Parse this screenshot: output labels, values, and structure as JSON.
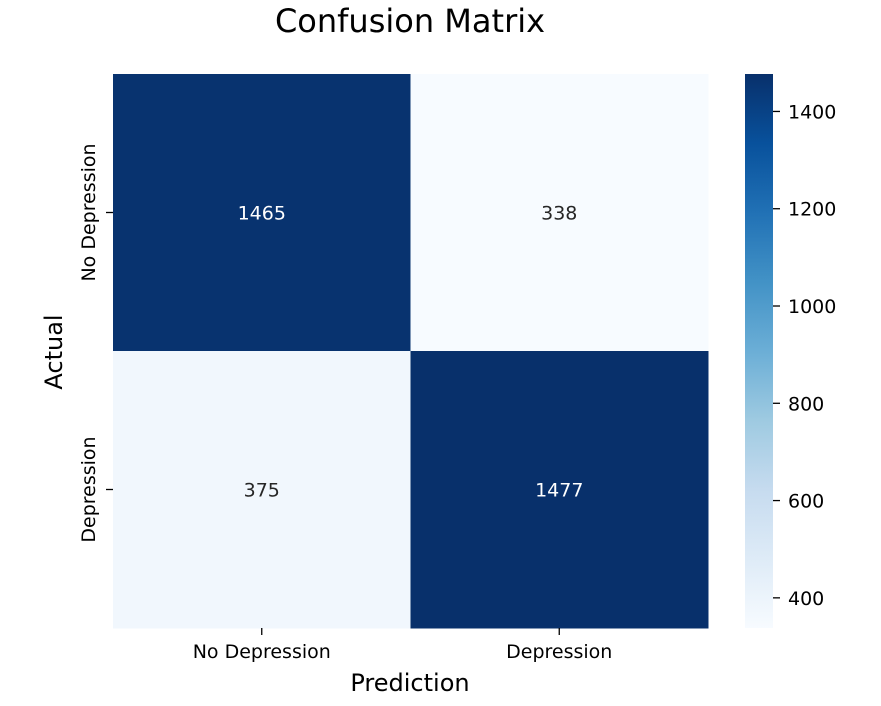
{
  "chart_data": {
    "type": "heatmap",
    "title": "Confusion Matrix",
    "xlabel": "Prediction",
    "ylabel": "Actual",
    "x_categories": [
      "No Depression",
      "Depression"
    ],
    "y_categories": [
      "No Depression",
      "Depression"
    ],
    "values": [
      [
        1465,
        338
      ],
      [
        375,
        1477
      ]
    ],
    "colormap": "Blues",
    "colorbar": {
      "range": [
        338,
        1477
      ],
      "ticks": [
        400,
        600,
        800,
        1000,
        1200,
        1400
      ],
      "tick_labels": [
        "400",
        "600",
        "800",
        "1000",
        "1200",
        "1400"
      ]
    },
    "colors": {
      "low": "#f7fbff",
      "high": "#08306b",
      "text_dark_cell": "#ffffff",
      "text_light_cell": "#262626"
    },
    "grid": false,
    "legend": "none"
  }
}
